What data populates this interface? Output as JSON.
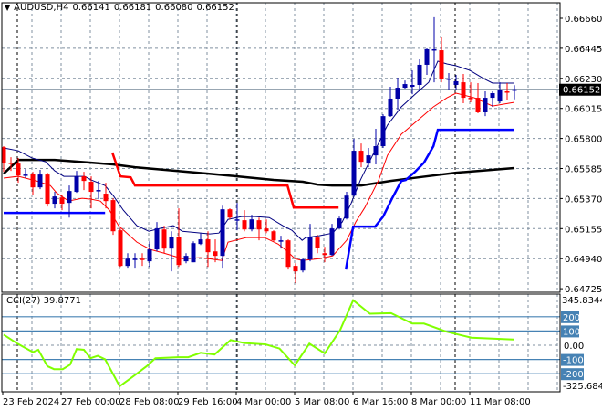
{
  "header": {
    "symbol": "AUDUSD,H4",
    "open": "0.66141",
    "high": "0.66181",
    "low": "0.66080",
    "close": "0.66152",
    "menu_icon": "triangle-down-icon"
  },
  "indicator": {
    "label": "CCI(27)",
    "value": "39.8771"
  },
  "colors": {
    "bull": "#0000a8",
    "bear": "#ff0000",
    "ma_long": "#000000",
    "ma_upper": "#000080",
    "ma_lower": "#ff0000",
    "stop_red": "#ff0000",
    "stop_blue": "#0000ff",
    "cci": "#80ff00",
    "levels": "#4682b4",
    "grid": "#8090a0",
    "bid_line": "#778899"
  },
  "chart_data": [
    {
      "type": "candlestick",
      "title": "AUDUSD,H4",
      "ylim": [
        0.64725,
        0.6666
      ],
      "yticks": [
        "0.66660",
        "0.66445",
        "0.66230",
        "0.66015",
        "0.65800",
        "0.65585",
        "0.65370",
        "0.65155",
        "0.64940",
        "0.64725"
      ],
      "current_price": "0.66152",
      "x_labels": [
        {
          "bar": 0,
          "text": "23 Feb 2024"
        },
        {
          "bar": 8,
          "text": "27 Feb 00:00"
        },
        {
          "bar": 16,
          "text": "28 Feb 08:00"
        },
        {
          "bar": 24,
          "text": "29 Feb 16:00"
        },
        {
          "bar": 32,
          "text": "4 Mar 00:00"
        },
        {
          "bar": 40,
          "text": "5 Mar 08:00"
        },
        {
          "bar": 48,
          "text": "6 Mar 16:00"
        },
        {
          "bar": 56,
          "text": "8 Mar 00:00"
        },
        {
          "bar": 64,
          "text": "11 Mar 08:00"
        }
      ],
      "grid": true,
      "ohlc": [
        [
          0.65738,
          0.65745,
          0.65561,
          0.65627
        ],
        [
          0.65627,
          0.65666,
          0.65568,
          0.6562
        ],
        [
          0.6562,
          0.6566,
          0.65483,
          0.65535
        ],
        [
          0.65535,
          0.65581,
          0.65516,
          0.65542
        ],
        [
          0.65548,
          0.65561,
          0.65398,
          0.6545
        ],
        [
          0.6545,
          0.65575,
          0.65437,
          0.65542
        ],
        [
          0.65542,
          0.65555,
          0.65313,
          0.65333
        ],
        [
          0.65333,
          0.65418,
          0.653,
          0.65385
        ],
        [
          0.65378,
          0.65398,
          0.65287,
          0.65333
        ],
        [
          0.65339,
          0.65463,
          0.65234,
          0.65424
        ],
        [
          0.65418,
          0.65568,
          0.65411,
          0.65529
        ],
        [
          0.65529,
          0.65561,
          0.65431,
          0.65496
        ],
        [
          0.6549,
          0.65529,
          0.653,
          0.65418
        ],
        [
          0.65424,
          0.65496,
          0.65365,
          0.65431
        ],
        [
          0.65405,
          0.65483,
          0.653,
          0.65352
        ],
        [
          0.65359,
          0.65372,
          0.6511,
          0.65136
        ],
        [
          0.65143,
          0.65156,
          0.64881,
          0.64888
        ],
        [
          0.64888,
          0.64979,
          0.64875,
          0.6494
        ],
        [
          0.64934,
          0.64979,
          0.64875,
          0.6494
        ],
        [
          0.6494,
          0.64979,
          0.64888,
          0.64934
        ],
        [
          0.64921,
          0.65064,
          0.64881,
          0.65006
        ],
        [
          0.65006,
          0.65202,
          0.64992,
          0.65156
        ],
        [
          0.65149,
          0.65176,
          0.64979,
          0.65012
        ],
        [
          0.65012,
          0.65136,
          0.64849,
          0.65097
        ],
        [
          0.65097,
          0.653,
          0.64881,
          0.64894
        ],
        [
          0.64921,
          0.64979,
          0.64907,
          0.6496
        ],
        [
          0.64914,
          0.65064,
          0.64914,
          0.65051
        ],
        [
          0.65045,
          0.65123,
          0.65038,
          0.65078
        ],
        [
          0.65078,
          0.65136,
          0.64881,
          0.64986
        ],
        [
          0.64992,
          0.65078,
          0.64914,
          0.6496
        ],
        [
          0.6496,
          0.65319,
          0.64875,
          0.65293
        ],
        [
          0.65293,
          0.653,
          0.65221,
          0.65234
        ],
        [
          0.65215,
          0.65339,
          0.65143,
          0.65221
        ],
        [
          0.65215,
          0.65287,
          0.65136,
          0.65149
        ],
        [
          0.65149,
          0.65254,
          0.65136,
          0.65221
        ],
        [
          0.65215,
          0.65234,
          0.65071,
          0.65149
        ],
        [
          0.65156,
          0.65221,
          0.65123,
          0.65136
        ],
        [
          0.65136,
          0.65143,
          0.65064,
          0.65071
        ],
        [
          0.65064,
          0.65104,
          0.65012,
          0.65071
        ],
        [
          0.65071,
          0.65078,
          0.64862,
          0.64881
        ],
        [
          0.64888,
          0.64907,
          0.64764,
          0.64849
        ],
        [
          0.64855,
          0.6494,
          0.64842,
          0.64934
        ],
        [
          0.64934,
          0.65189,
          0.64921,
          0.65097
        ],
        [
          0.65091,
          0.6511,
          0.64979,
          0.65019
        ],
        [
          0.64979,
          0.65025,
          0.64914,
          0.64966
        ],
        [
          0.64966,
          0.65189,
          0.6496,
          0.65156
        ],
        [
          0.65156,
          0.65241,
          0.65149,
          0.65228
        ],
        [
          0.65228,
          0.65418,
          0.65221,
          0.65391
        ],
        [
          0.65391,
          0.65797,
          0.65385,
          0.65712
        ],
        [
          0.65712,
          0.65764,
          0.65594,
          0.65633
        ],
        [
          0.6562,
          0.65732,
          0.65594,
          0.65679
        ],
        [
          0.65679,
          0.65869,
          0.65614,
          0.65745
        ],
        [
          0.65745,
          0.65973,
          0.65732,
          0.6596
        ],
        [
          0.6596,
          0.6617,
          0.65954,
          0.66085
        ],
        [
          0.66085,
          0.66235,
          0.66006,
          0.66163
        ],
        [
          0.66163,
          0.66215,
          0.66157,
          0.66189
        ],
        [
          0.6617,
          0.66287,
          0.66117,
          0.66183
        ],
        [
          0.66183,
          0.66366,
          0.66137,
          0.66327
        ],
        [
          0.66327,
          0.66444,
          0.66255,
          0.66438
        ],
        [
          0.66431,
          0.66667,
          0.66202,
          0.66438
        ],
        [
          0.66431,
          0.66523,
          0.66202,
          0.66222
        ],
        [
          0.66222,
          0.66268,
          0.6615,
          0.66229
        ],
        [
          0.66183,
          0.66255,
          0.6615,
          0.66209
        ],
        [
          0.66202,
          0.66261,
          0.66052,
          0.66091
        ],
        [
          0.66091,
          0.66202,
          0.66059,
          0.66085
        ],
        [
          0.66091,
          0.66196,
          0.6598,
          0.65987
        ],
        [
          0.65987,
          0.66137,
          0.6596,
          0.66091
        ],
        [
          0.66091,
          0.66137,
          0.66026,
          0.66124
        ],
        [
          0.66065,
          0.66202,
          0.66052,
          0.66144
        ],
        [
          0.66137,
          0.66196,
          0.66078,
          0.6613
        ],
        [
          0.66141,
          0.66181,
          0.6608,
          0.66152
        ]
      ],
      "lines": [
        {
          "key": "ma_long",
          "width": 2.5,
          "points": [
            [
              0,
              0.65548
            ],
            [
              2,
              0.65646
            ],
            [
              7,
              0.65646
            ],
            [
              12,
              0.65627
            ],
            [
              15,
              0.65614
            ],
            [
              18,
              0.65594
            ],
            [
              28,
              0.65548
            ],
            [
              32,
              0.65529
            ],
            [
              37,
              0.65503
            ],
            [
              41,
              0.6549
            ],
            [
              43,
              0.6547
            ],
            [
              45,
              0.65463
            ],
            [
              49,
              0.65463
            ],
            [
              53,
              0.65496
            ],
            [
              56,
              0.65516
            ],
            [
              58,
              0.65529
            ],
            [
              62,
              0.65555
            ],
            [
              70,
              0.65588
            ]
          ]
        },
        {
          "key": "ma_upper",
          "width": 1,
          "points": [
            [
              0,
              0.65732
            ],
            [
              2,
              0.65712
            ],
            [
              3.9,
              0.6566
            ],
            [
              5.75,
              0.65633
            ],
            [
              7,
              0.65568
            ],
            [
              8.25,
              0.65529
            ],
            [
              11.1,
              0.65529
            ],
            [
              12,
              0.65503
            ],
            [
              13.9,
              0.65463
            ],
            [
              15.1,
              0.65385
            ],
            [
              16.4,
              0.65287
            ],
            [
              18.25,
              0.65176
            ],
            [
              19.9,
              0.65136
            ],
            [
              21.4,
              0.65156
            ],
            [
              23.25,
              0.65176
            ],
            [
              24.5,
              0.65136
            ],
            [
              28.25,
              0.65117
            ],
            [
              29.5,
              0.65123
            ],
            [
              30.75,
              0.65221
            ],
            [
              32.6,
              0.65241
            ],
            [
              34.5,
              0.65241
            ],
            [
              36.4,
              0.65234
            ],
            [
              38.25,
              0.65176
            ],
            [
              39.5,
              0.65143
            ],
            [
              40.9,
              0.65071
            ],
            [
              41.4,
              0.65091
            ],
            [
              43.25,
              0.65104
            ],
            [
              45.1,
              0.65123
            ],
            [
              46.4,
              0.65202
            ],
            [
              47.6,
              0.65333
            ],
            [
              48.9,
              0.65503
            ],
            [
              50.75,
              0.65699
            ],
            [
              52.6,
              0.65895
            ],
            [
              54.5,
              0.66026
            ],
            [
              56.4,
              0.66117
            ],
            [
              58.25,
              0.66202
            ],
            [
              59.5,
              0.66353
            ],
            [
              60.75,
              0.66333
            ],
            [
              62,
              0.6632
            ],
            [
              63.9,
              0.66287
            ],
            [
              65.75,
              0.66229
            ],
            [
              67,
              0.66196
            ],
            [
              69.9,
              0.66196
            ]
          ]
        },
        {
          "key": "ma_lower",
          "width": 1,
          "points": [
            [
              0,
              0.65516
            ],
            [
              2,
              0.65529
            ],
            [
              4.5,
              0.65496
            ],
            [
              6.4,
              0.65463
            ],
            [
              7.25,
              0.65411
            ],
            [
              8.9,
              0.65352
            ],
            [
              10.75,
              0.65372
            ],
            [
              12,
              0.65365
            ],
            [
              13.25,
              0.65352
            ],
            [
              14.5,
              0.65287
            ],
            [
              15.75,
              0.65176
            ],
            [
              18.25,
              0.65058
            ],
            [
              20.1,
              0.65006
            ],
            [
              22,
              0.64979
            ],
            [
              24.5,
              0.6494
            ],
            [
              27,
              0.64947
            ],
            [
              29.9,
              0.64927
            ],
            [
              30.75,
              0.65058
            ],
            [
              33.25,
              0.65091
            ],
            [
              35.75,
              0.65091
            ],
            [
              37.6,
              0.65045
            ],
            [
              38.9,
              0.64992
            ],
            [
              39.9,
              0.6494
            ],
            [
              40.9,
              0.64927
            ],
            [
              43.25,
              0.6494
            ],
            [
              45.1,
              0.6496
            ],
            [
              47,
              0.65071
            ],
            [
              48.25,
              0.65202
            ],
            [
              49.5,
              0.65306
            ],
            [
              51.4,
              0.65503
            ],
            [
              52.6,
              0.65679
            ],
            [
              54.5,
              0.6583
            ],
            [
              57,
              0.65941
            ],
            [
              58.9,
              0.66026
            ],
            [
              60.75,
              0.66091
            ],
            [
              62,
              0.66124
            ],
            [
              64.5,
              0.66091
            ],
            [
              67,
              0.66032
            ],
            [
              69.9,
              0.66058
            ]
          ]
        },
        {
          "key": "stop_red",
          "width": 2.5,
          "points": [
            [
              14.9,
              0.65699
            ],
            [
              16,
              0.65529
            ],
            [
              17.4,
              0.65522
            ],
            [
              18,
              0.65463
            ],
            [
              38.9,
              0.65463
            ],
            [
              39.75,
              0.65306
            ],
            [
              45.9,
              0.65306
            ]
          ]
        },
        {
          "key": "stop_blue",
          "width": 2.5,
          "points": [
            [
              0,
              0.65267
            ],
            [
              13.9,
              0.65267
            ]
          ]
        },
        {
          "key": "stop_blue",
          "width": 2.5,
          "points": [
            [
              46.9,
              0.64862
            ],
            [
              47.9,
              0.65169
            ],
            [
              50.9,
              0.65169
            ],
            [
              52,
              0.65241
            ],
            [
              53.25,
              0.65372
            ],
            [
              54.5,
              0.65496
            ],
            [
              55.1,
              0.65503
            ],
            [
              56.4,
              0.65562
            ],
            [
              57.6,
              0.65627
            ],
            [
              58.9,
              0.65745
            ],
            [
              59.5,
              0.65862
            ],
            [
              69.9,
              0.65862
            ]
          ]
        }
      ]
    },
    {
      "type": "line",
      "title": "CCI(27) 39.8771",
      "ylim": [
        -325.6841,
        345.8344
      ],
      "ytick_top": "345.8344",
      "ytick_bottom": "-325.6841",
      "levels": [
        "200",
        "100",
        "-100",
        "-200"
      ],
      "zero_label": "0.00",
      "points": [
        [
          0,
          74
        ],
        [
          1.9,
          11
        ],
        [
          4,
          -48
        ],
        [
          4.75,
          -32
        ],
        [
          6,
          -147
        ],
        [
          6.9,
          -168
        ],
        [
          8.1,
          -168
        ],
        [
          9.1,
          -137
        ],
        [
          10,
          -27
        ],
        [
          11,
          -32
        ],
        [
          11.9,
          -91
        ],
        [
          12.9,
          -74
        ],
        [
          13.9,
          -99
        ],
        [
          15.9,
          -288
        ],
        [
          17.7,
          -221
        ],
        [
          19.6,
          -147
        ],
        [
          20.8,
          -91
        ],
        [
          23.9,
          -84
        ],
        [
          25.3,
          -84
        ],
        [
          27,
          -53
        ],
        [
          28.9,
          -65
        ],
        [
          31.1,
          36
        ],
        [
          33,
          15
        ],
        [
          35.9,
          6
        ],
        [
          37.8,
          -23
        ],
        [
          39.9,
          -141
        ],
        [
          41.9,
          11
        ],
        [
          44,
          -57
        ],
        [
          46.1,
          105
        ],
        [
          47.9,
          316
        ],
        [
          50.2,
          221
        ],
        [
          53.1,
          225
        ],
        [
          56,
          152
        ],
        [
          57.6,
          152
        ],
        [
          60.7,
          95
        ],
        [
          64.1,
          53
        ],
        [
          69.9,
          40
        ]
      ]
    }
  ]
}
